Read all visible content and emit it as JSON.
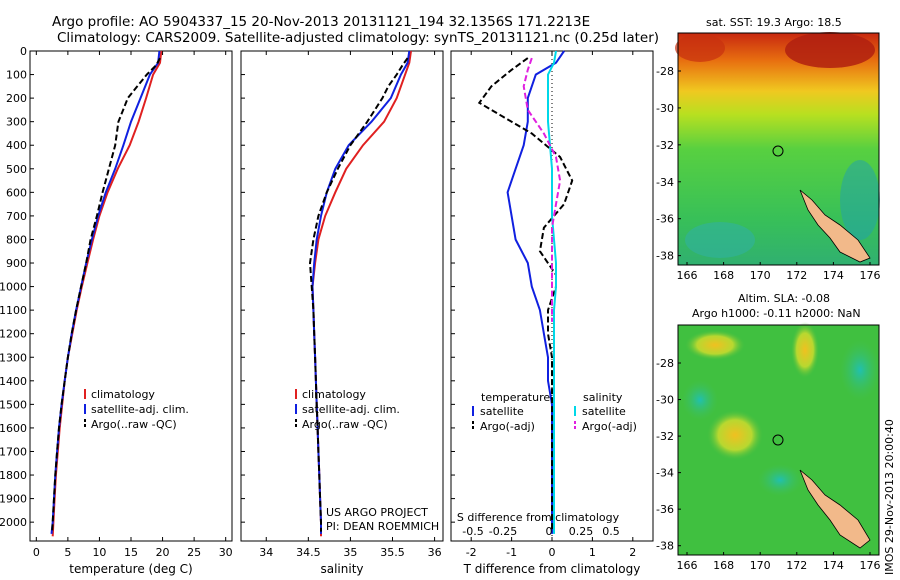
{
  "header": {
    "line1": "Argo profile: AO 5904337_15 20-Nov-2013 20131121_194 32.1356S 171.2213E",
    "line2": "Climatology: CARS2009. Satellite-adjusted climatology: synTS_20131121.nc (0.25d later)"
  },
  "chart_data": [
    {
      "type": "line",
      "panel": "temperature",
      "xlabel": "temperature (deg C)",
      "ylabel": "",
      "xlim": [
        -1,
        31
      ],
      "ylim": [
        2080,
        0
      ],
      "xticks": [
        0,
        5,
        10,
        15,
        20,
        25,
        30
      ],
      "yticks": [
        0,
        100,
        200,
        300,
        400,
        500,
        600,
        700,
        800,
        900,
        1000,
        1100,
        1200,
        1300,
        1400,
        1500,
        1600,
        1700,
        1800,
        1900,
        2000
      ],
      "legend": [
        "climatology",
        "satellite-adj. clim.",
        "Argo(..raw -QC)"
      ],
      "series": [
        {
          "name": "climatology",
          "color": "#e02020",
          "dash": "",
          "points": [
            [
              19.8,
              0
            ],
            [
              19.6,
              50
            ],
            [
              18.5,
              100
            ],
            [
              17.4,
              200
            ],
            [
              16.2,
              300
            ],
            [
              14.8,
              400
            ],
            [
              12.9,
              500
            ],
            [
              11.3,
              600
            ],
            [
              10.0,
              700
            ],
            [
              9.0,
              800
            ],
            [
              8.1,
              900
            ],
            [
              7.2,
              1000
            ],
            [
              6.4,
              1100
            ],
            [
              5.7,
              1200
            ],
            [
              5.0,
              1300
            ],
            [
              4.5,
              1400
            ],
            [
              4.1,
              1500
            ],
            [
              3.7,
              1600
            ],
            [
              3.4,
              1700
            ],
            [
              3.1,
              1800
            ],
            [
              2.9,
              1900
            ],
            [
              2.7,
              2000
            ],
            [
              2.6,
              2060
            ]
          ]
        },
        {
          "name": "satellite-adj. clim.",
          "color": "#1020e0",
          "dash": "",
          "points": [
            [
              19.5,
              0
            ],
            [
              19.3,
              50
            ],
            [
              18.0,
              100
            ],
            [
              16.5,
              200
            ],
            [
              15.0,
              300
            ],
            [
              13.8,
              400
            ],
            [
              12.5,
              500
            ],
            [
              11.0,
              600
            ],
            [
              9.8,
              700
            ],
            [
              8.8,
              800
            ],
            [
              7.9,
              900
            ],
            [
              7.1,
              1000
            ],
            [
              6.3,
              1100
            ],
            [
              5.6,
              1200
            ],
            [
              5.0,
              1300
            ],
            [
              4.5,
              1400
            ],
            [
              4.0,
              1500
            ],
            [
              3.6,
              1600
            ],
            [
              3.3,
              1700
            ],
            [
              3.0,
              1800
            ],
            [
              2.8,
              1900
            ],
            [
              2.6,
              2000
            ],
            [
              2.4,
              2050
            ]
          ]
        },
        {
          "name": "Argo(..raw -QC)",
          "color": "#000000",
          "dash": "6,3",
          "points": [
            [
              19.6,
              30
            ],
            [
              19.0,
              60
            ],
            [
              17.5,
              100
            ],
            [
              16.0,
              150
            ],
            [
              14.5,
              200
            ],
            [
              13.6,
              260
            ],
            [
              13.0,
              300
            ],
            [
              12.5,
              400
            ],
            [
              11.5,
              500
            ],
            [
              10.5,
              600
            ],
            [
              9.6,
              700
            ],
            [
              8.6,
              800
            ],
            [
              7.9,
              900
            ],
            [
              7.1,
              1000
            ],
            [
              6.3,
              1100
            ],
            [
              5.6,
              1200
            ],
            [
              5.0,
              1300
            ],
            [
              4.5,
              1400
            ],
            [
              4.0,
              1500
            ],
            [
              3.6,
              1600
            ],
            [
              3.3,
              1700
            ],
            [
              3.0,
              1800
            ],
            [
              2.8,
              1900
            ],
            [
              2.6,
              2000
            ],
            [
              2.5,
              2040
            ]
          ]
        }
      ]
    },
    {
      "type": "line",
      "panel": "salinity",
      "xlabel": "salinity",
      "ylabel": "",
      "xlim": [
        33.7,
        36.1
      ],
      "ylim": [
        2080,
        0
      ],
      "xticks": [
        34,
        34.5,
        35,
        35.5,
        36
      ],
      "legend": [
        "climatology",
        "satellite-adj. clim.",
        "Argo(..raw -QC)"
      ],
      "annotation": [
        "US ARGO PROJECT",
        "PI: DEAN ROEMMICH"
      ],
      "series": [
        {
          "name": "climatology",
          "color": "#e02020",
          "dash": "",
          "points": [
            [
              35.72,
              0
            ],
            [
              35.7,
              50
            ],
            [
              35.65,
              100
            ],
            [
              35.55,
              200
            ],
            [
              35.4,
              300
            ],
            [
              35.15,
              400
            ],
            [
              34.95,
              500
            ],
            [
              34.82,
              600
            ],
            [
              34.7,
              700
            ],
            [
              34.62,
              800
            ],
            [
              34.58,
              900
            ],
            [
              34.55,
              1000
            ],
            [
              34.56,
              1100
            ],
            [
              34.57,
              1200
            ],
            [
              34.58,
              1300
            ],
            [
              34.59,
              1400
            ],
            [
              34.6,
              1500
            ],
            [
              34.61,
              1600
            ],
            [
              34.62,
              1700
            ],
            [
              34.63,
              1800
            ],
            [
              34.64,
              1900
            ],
            [
              34.65,
              2000
            ],
            [
              34.65,
              2060
            ]
          ]
        },
        {
          "name": "satellite-adj. clim.",
          "color": "#1020e0",
          "dash": "",
          "points": [
            [
              35.7,
              0
            ],
            [
              35.68,
              50
            ],
            [
              35.6,
              100
            ],
            [
              35.48,
              200
            ],
            [
              35.25,
              300
            ],
            [
              34.98,
              400
            ],
            [
              34.82,
              500
            ],
            [
              34.72,
              600
            ],
            [
              34.65,
              700
            ],
            [
              34.6,
              800
            ],
            [
              34.57,
              900
            ],
            [
              34.55,
              1000
            ],
            [
              34.56,
              1100
            ],
            [
              34.57,
              1200
            ],
            [
              34.58,
              1300
            ],
            [
              34.59,
              1400
            ],
            [
              34.6,
              1500
            ],
            [
              34.61,
              1600
            ],
            [
              34.62,
              1700
            ],
            [
              34.63,
              1800
            ],
            [
              34.64,
              1900
            ],
            [
              34.65,
              2000
            ],
            [
              34.65,
              2050
            ]
          ]
        },
        {
          "name": "Argo(..raw -QC)",
          "color": "#000000",
          "dash": "6,3",
          "points": [
            [
              35.68,
              30
            ],
            [
              35.62,
              60
            ],
            [
              35.55,
              100
            ],
            [
              35.45,
              150
            ],
            [
              35.38,
              200
            ],
            [
              35.2,
              300
            ],
            [
              35.0,
              400
            ],
            [
              34.85,
              500
            ],
            [
              34.72,
              600
            ],
            [
              34.62,
              700
            ],
            [
              34.56,
              800
            ],
            [
              34.52,
              900
            ],
            [
              34.54,
              1000
            ],
            [
              34.56,
              1100
            ],
            [
              34.57,
              1200
            ],
            [
              34.58,
              1300
            ],
            [
              34.59,
              1400
            ],
            [
              34.6,
              1500
            ],
            [
              34.61,
              1600
            ],
            [
              34.62,
              1700
            ],
            [
              34.63,
              1800
            ],
            [
              34.64,
              1900
            ],
            [
              34.65,
              2000
            ],
            [
              34.65,
              2040
            ]
          ]
        }
      ]
    },
    {
      "type": "line",
      "panel": "difference",
      "xlabel": "T difference from climatology",
      "xlabel2": "S difference from climatology",
      "xlim": [
        -2.5,
        2.5
      ],
      "ylim": [
        2080,
        0
      ],
      "xticks": [
        -2,
        -1,
        0,
        1,
        2
      ],
      "xticks2": [
        "-0.5",
        "-0.25",
        "0",
        "0.25",
        "0.5"
      ],
      "legend_header": [
        "temperature",
        "salinity"
      ],
      "legend": [
        "satellite",
        "Argo(-adj)",
        "satellite",
        "Argo(-adj)"
      ],
      "series": [
        {
          "name": "satellite",
          "group": "temperature",
          "color": "#1020e0",
          "dash": "",
          "points": [
            [
              0.3,
              0
            ],
            [
              0.1,
              50
            ],
            [
              -0.4,
              100
            ],
            [
              -0.6,
              200
            ],
            [
              -0.6,
              300
            ],
            [
              -0.7,
              400
            ],
            [
              -0.9,
              500
            ],
            [
              -1.1,
              600
            ],
            [
              -1.0,
              700
            ],
            [
              -0.9,
              800
            ],
            [
              -0.6,
              900
            ],
            [
              -0.5,
              1000
            ],
            [
              -0.3,
              1100
            ],
            [
              -0.2,
              1200
            ],
            [
              -0.1,
              1300
            ],
            [
              -0.1,
              1400
            ],
            [
              0,
              1500
            ],
            [
              0,
              1600
            ],
            [
              0,
              1700
            ],
            [
              0,
              1800
            ],
            [
              0,
              1900
            ],
            [
              0,
              2000
            ],
            [
              0,
              2050
            ]
          ]
        },
        {
          "name": "Argo(-adj)",
          "group": "temperature",
          "color": "#000000",
          "dash": "6,3",
          "points": [
            [
              -0.6,
              30
            ],
            [
              -1.0,
              80
            ],
            [
              -1.5,
              150
            ],
            [
              -1.8,
              220
            ],
            [
              -1.2,
              280
            ],
            [
              -0.5,
              350
            ],
            [
              0.2,
              450
            ],
            [
              0.5,
              550
            ],
            [
              0.3,
              650
            ],
            [
              -0.2,
              750
            ],
            [
              -0.3,
              850
            ],
            [
              0.1,
              950
            ],
            [
              0.1,
              1000
            ],
            [
              -0.1,
              1100
            ],
            [
              -0.1,
              1200
            ],
            [
              0,
              1300
            ],
            [
              0,
              1400
            ],
            [
              0,
              1500
            ],
            [
              0,
              1600
            ],
            [
              0,
              1700
            ],
            [
              0,
              1800
            ],
            [
              0,
              1900
            ],
            [
              0,
              2000
            ],
            [
              0,
              2040
            ]
          ]
        },
        {
          "name": "satellite",
          "group": "salinity",
          "color": "#00d8e8",
          "dash": "",
          "points": [
            [
              0.1,
              0
            ],
            [
              0.05,
              50
            ],
            [
              -0.1,
              100
            ],
            [
              -0.1,
              200
            ],
            [
              -0.1,
              300
            ],
            [
              -0.05,
              400
            ],
            [
              0,
              500
            ],
            [
              0,
              600
            ],
            [
              0,
              700
            ],
            [
              0.05,
              800
            ],
            [
              0.1,
              900
            ],
            [
              0.1,
              1000
            ],
            [
              0.05,
              1100
            ],
            [
              0.05,
              1200
            ],
            [
              0.05,
              1300
            ],
            [
              0.05,
              1400
            ],
            [
              0.05,
              1500
            ],
            [
              0.05,
              1600
            ],
            [
              0.05,
              1700
            ],
            [
              0.05,
              1800
            ],
            [
              0.05,
              1900
            ],
            [
              0.05,
              2000
            ],
            [
              0.05,
              2050
            ]
          ]
        },
        {
          "name": "Argo(-adj)",
          "group": "salinity",
          "color": "#e020e0",
          "dash": "6,3",
          "points": [
            [
              -0.5,
              30
            ],
            [
              -0.6,
              80
            ],
            [
              -0.7,
              150
            ],
            [
              -0.6,
              250
            ],
            [
              -0.2,
              350
            ],
            [
              0.1,
              450
            ],
            [
              0.2,
              550
            ],
            [
              0.1,
              650
            ],
            [
              0,
              750
            ],
            [
              0,
              850
            ],
            [
              0,
              950
            ],
            [
              0,
              1050
            ],
            [
              0,
              1150
            ]
          ]
        }
      ]
    }
  ],
  "maps": {
    "sst": {
      "title": "sat. SST: 19.3 Argo: 18.5",
      "lon_ticks": [
        "166",
        "168",
        "170",
        "172",
        "174",
        "176"
      ],
      "lat_ticks": [
        "-28",
        "-30",
        "-32",
        "-34",
        "-36",
        "-38"
      ]
    },
    "sla": {
      "title_line1": "Altim. SLA: -0.08",
      "title_line2": "Argo h1000: -0.11 h2000: NaN",
      "lon_ticks": [
        "166",
        "168",
        "170",
        "172",
        "174",
        "176"
      ],
      "lat_ticks": [
        "-28",
        "-30",
        "-32",
        "-34",
        "-36",
        "-38"
      ]
    },
    "colors": {
      "land": "#f2b98a",
      "sst_warm": "#cc2a10",
      "sst_mid": "#f0d020",
      "sst_cool": "#40d040",
      "sla_base": "#40c040"
    }
  },
  "stamp": "IMOS 29-Nov-2013 20:00:40"
}
